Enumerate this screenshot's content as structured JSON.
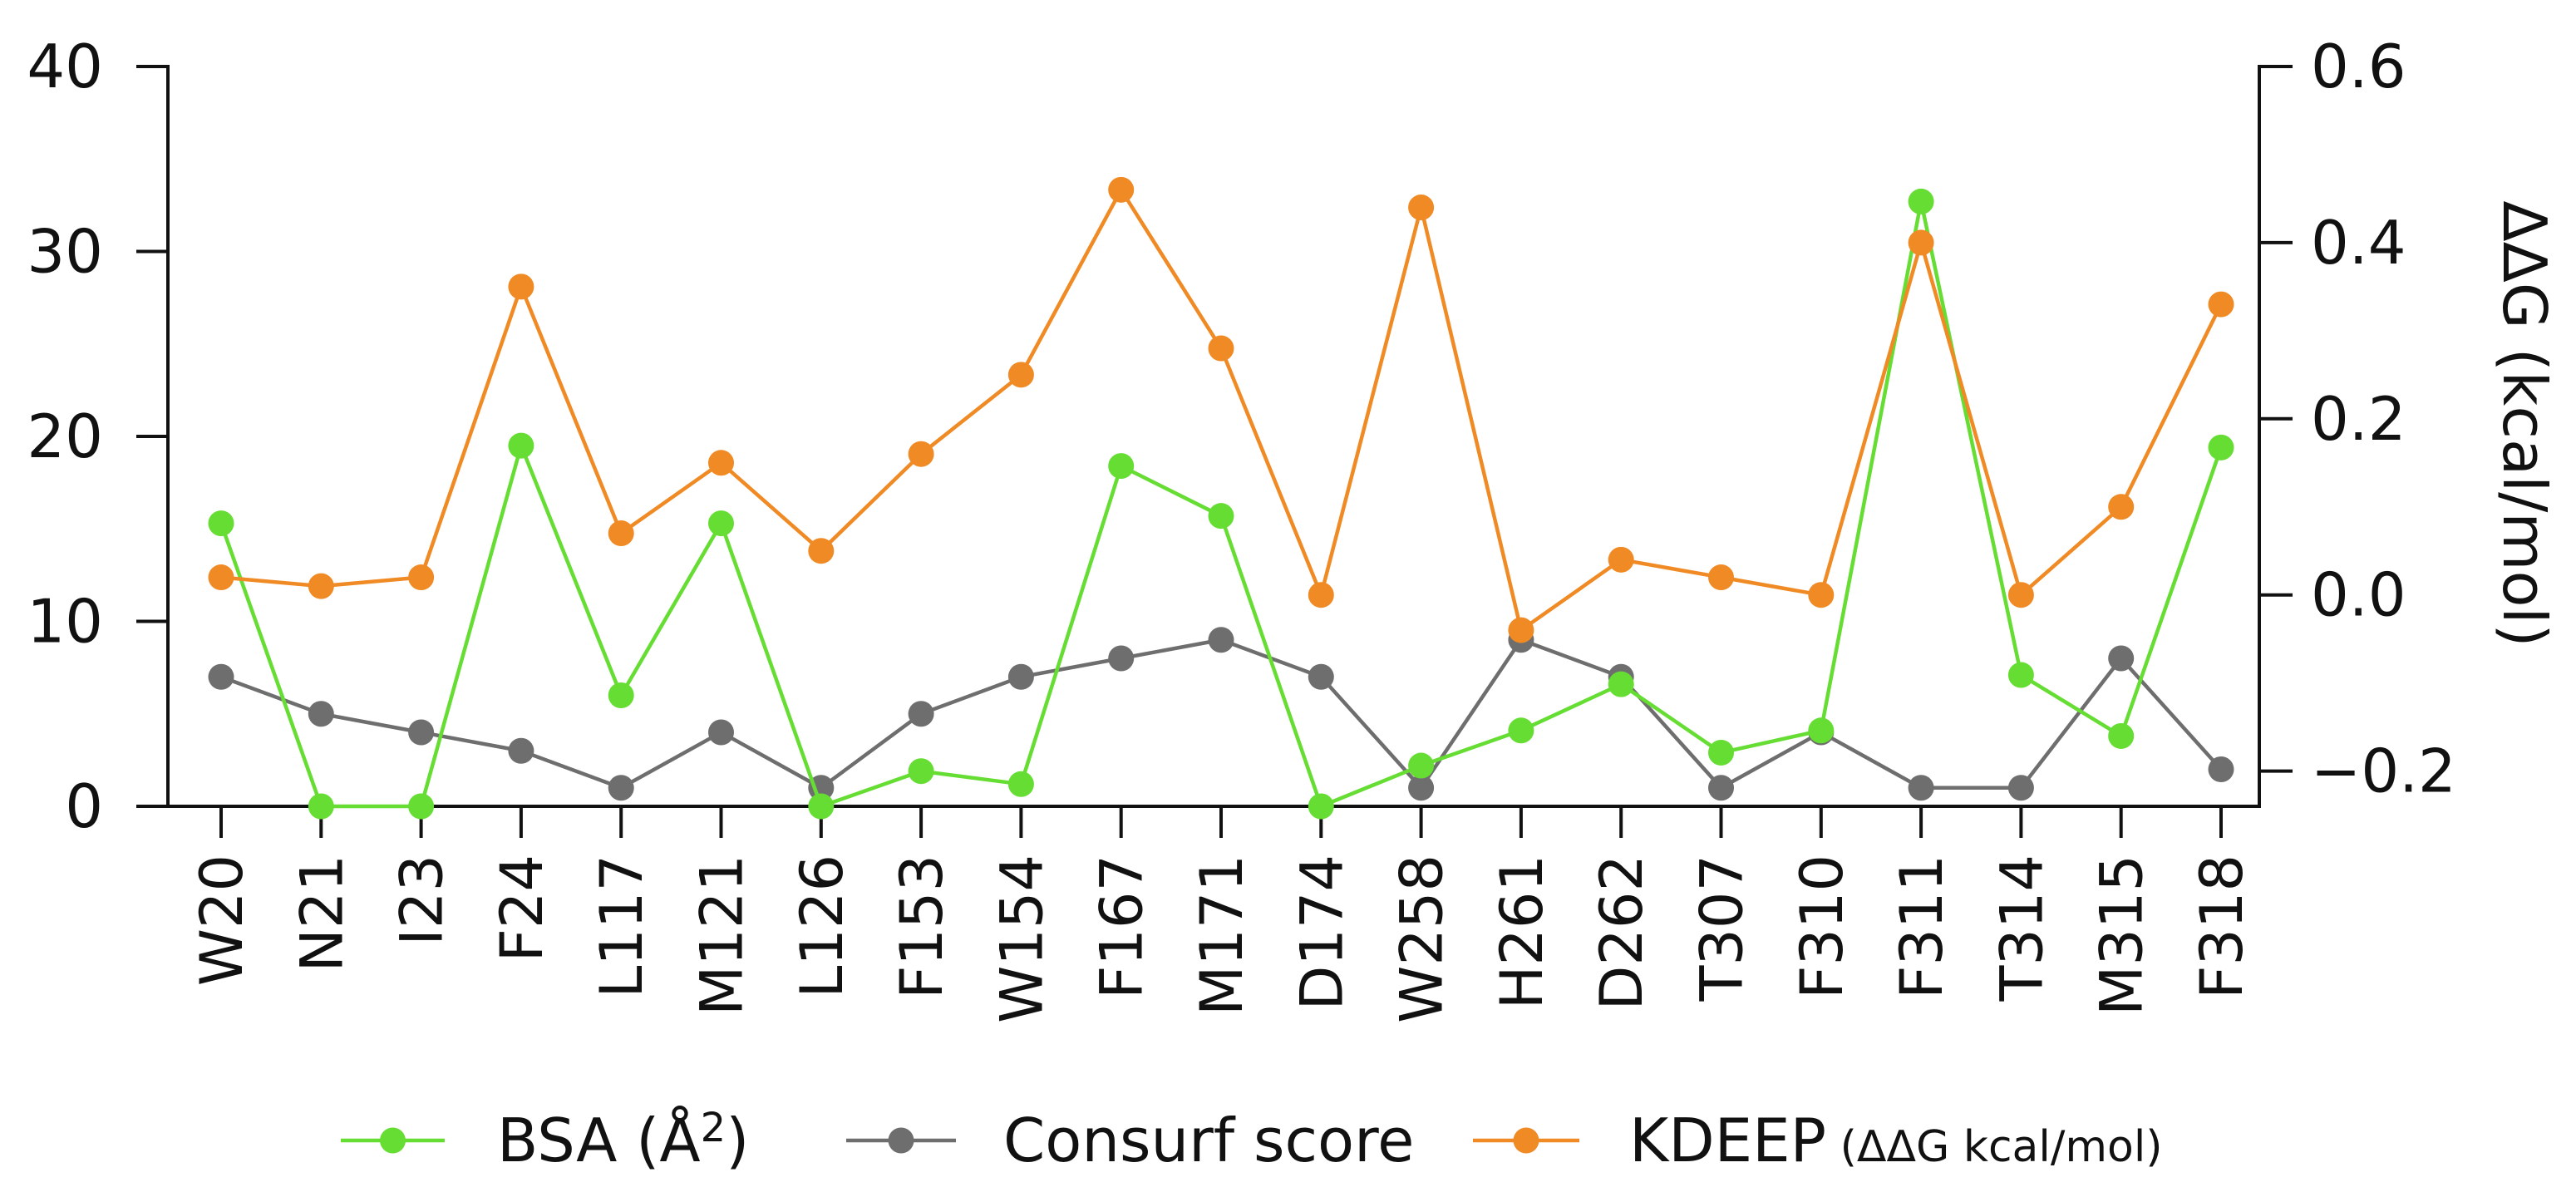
{
  "chart_data": {
    "type": "line",
    "categories": [
      "W20",
      "N21",
      "I23",
      "F24",
      "L117",
      "M121",
      "L126",
      "F153",
      "W154",
      "F167",
      "M171",
      "D174",
      "W258",
      "H261",
      "D262",
      "T307",
      "F310",
      "F311",
      "T314",
      "M315",
      "F318"
    ],
    "left_axis": {
      "ylim": [
        0,
        40
      ],
      "ticks": [
        "0",
        "10",
        "20",
        "30",
        "40"
      ],
      "tick_values": [
        0,
        10,
        20,
        30,
        40
      ]
    },
    "right_axis": {
      "ylim": [
        -0.24,
        0.6
      ],
      "ticks": [
        "−0.2",
        "0.0",
        "0.2",
        "0.4",
        "0.6"
      ],
      "tick_values": [
        -0.2,
        0,
        0.2,
        0.4,
        0.6
      ],
      "label": "ΔΔG (kcal/mol)"
    },
    "series": [
      {
        "name": "BSA",
        "legend_label": "BSA (Å",
        "legend_sup": "2",
        "legend_close": ")",
        "axis": "left",
        "color": "#66dd33",
        "values": [
          15.3,
          0,
          0,
          19.5,
          6,
          15.3,
          0,
          1.9,
          1.2,
          18.4,
          15.7,
          0,
          2.2,
          4.1,
          6.6,
          2.9,
          4.1,
          32.7,
          7.1,
          3.8,
          19.4
        ]
      },
      {
        "name": "Consurf score",
        "legend_label": "Consurf score",
        "axis": "left",
        "color": "#6e6e6e",
        "values": [
          7,
          5,
          4,
          3,
          1,
          4,
          1,
          5,
          7,
          8,
          9,
          7,
          1,
          9,
          7,
          1,
          4,
          1,
          1,
          8,
          2
        ]
      },
      {
        "name": "KDEEP",
        "legend_label": "KDEEP",
        "legend_sub": "(ΔΔG kcal/mol)",
        "axis": "right",
        "color": "#f08a24",
        "values": [
          0.02,
          0.01,
          0.02,
          0.35,
          0.07,
          0.15,
          0.05,
          0.16,
          0.25,
          0.46,
          0.28,
          0.0,
          0.44,
          -0.04,
          0.04,
          0.02,
          0.0,
          0.4,
          0.0,
          0.1,
          0.33
        ]
      }
    ],
    "legend_position": "bottom"
  }
}
